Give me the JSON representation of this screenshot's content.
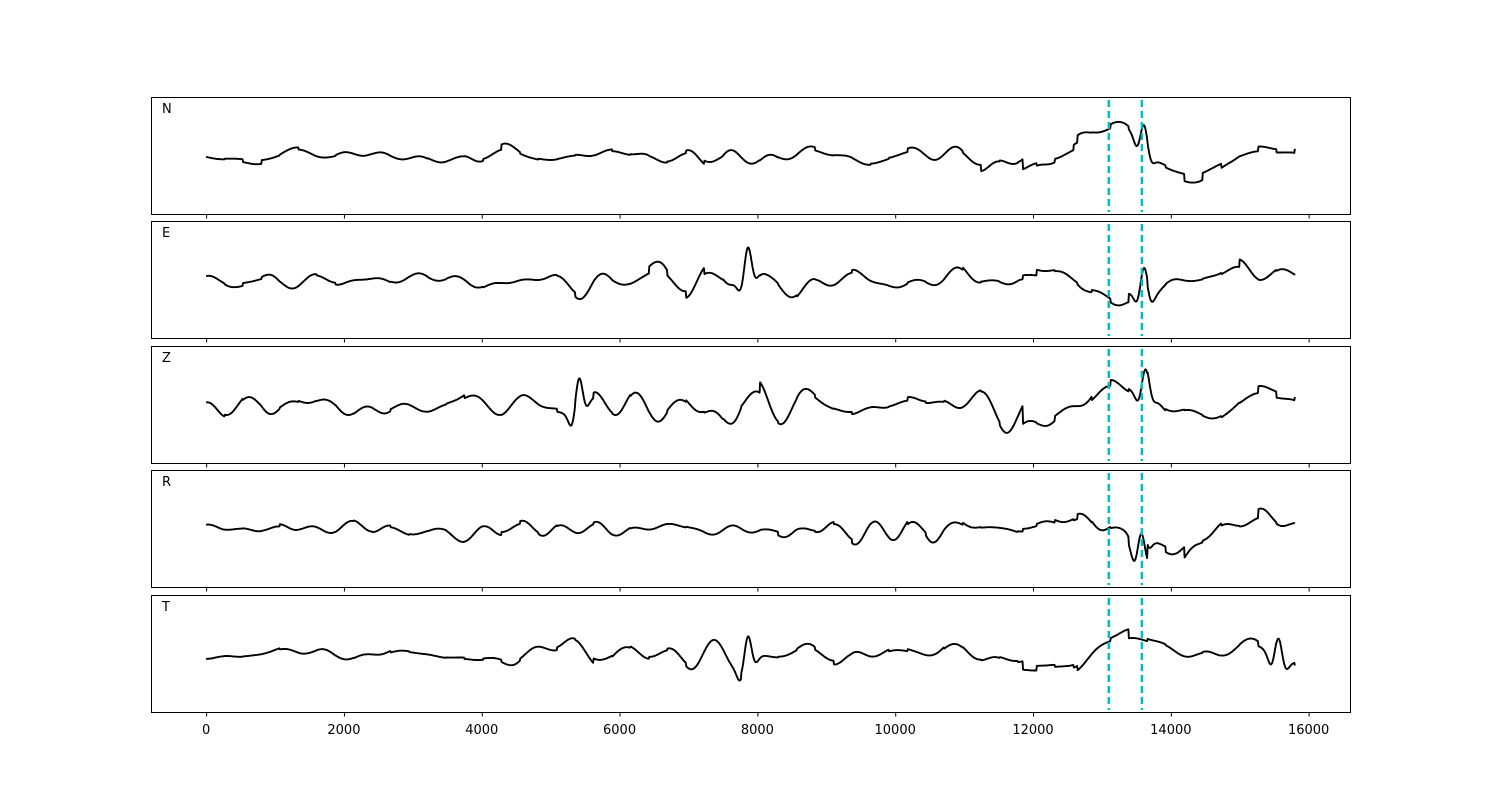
{
  "chart_data": {
    "type": "line",
    "panels": [
      {
        "label": "N",
        "amp": 0.62,
        "events": [
          {
            "x": 13600,
            "amp": 2.1
          }
        ],
        "late_boost": 1.5
      },
      {
        "label": "E",
        "amp": 0.78,
        "events": [
          {
            "x": 7850,
            "amp": 2.0
          },
          {
            "x": 13600,
            "amp": 1.8
          }
        ],
        "late_boost": 1.6
      },
      {
        "label": "Z",
        "amp": 0.95,
        "events": [
          {
            "x": 5400,
            "amp": 1.7
          },
          {
            "x": 13620,
            "amp": 1.4
          }
        ],
        "late_boost": 1.3
      },
      {
        "label": "R",
        "amp": 0.6,
        "events": [
          {
            "x": 13560,
            "amp": 2.4
          }
        ],
        "late_boost": 1.5
      },
      {
        "label": "T",
        "amp": 0.9,
        "events": [
          {
            "x": 7850,
            "amp": 1.6
          },
          {
            "x": 15550,
            "amp": 1.5
          }
        ],
        "late_boost": 1.4
      }
    ],
    "x_range": [
      0,
      15800
    ],
    "xlim": [
      -800,
      16600
    ],
    "xticks": [
      0,
      2000,
      4000,
      6000,
      8000,
      10000,
      12000,
      14000,
      16000
    ],
    "xtick_labels": [
      "0",
      "2000",
      "4000",
      "6000",
      "8000",
      "10000",
      "12000",
      "14000",
      "16000"
    ],
    "markers": [
      13100,
      13580
    ],
    "colors": {
      "trace": "#000000",
      "marker": "#00BFBF"
    },
    "xlabel": "",
    "ylabel": "",
    "title": "",
    "grid": false
  }
}
